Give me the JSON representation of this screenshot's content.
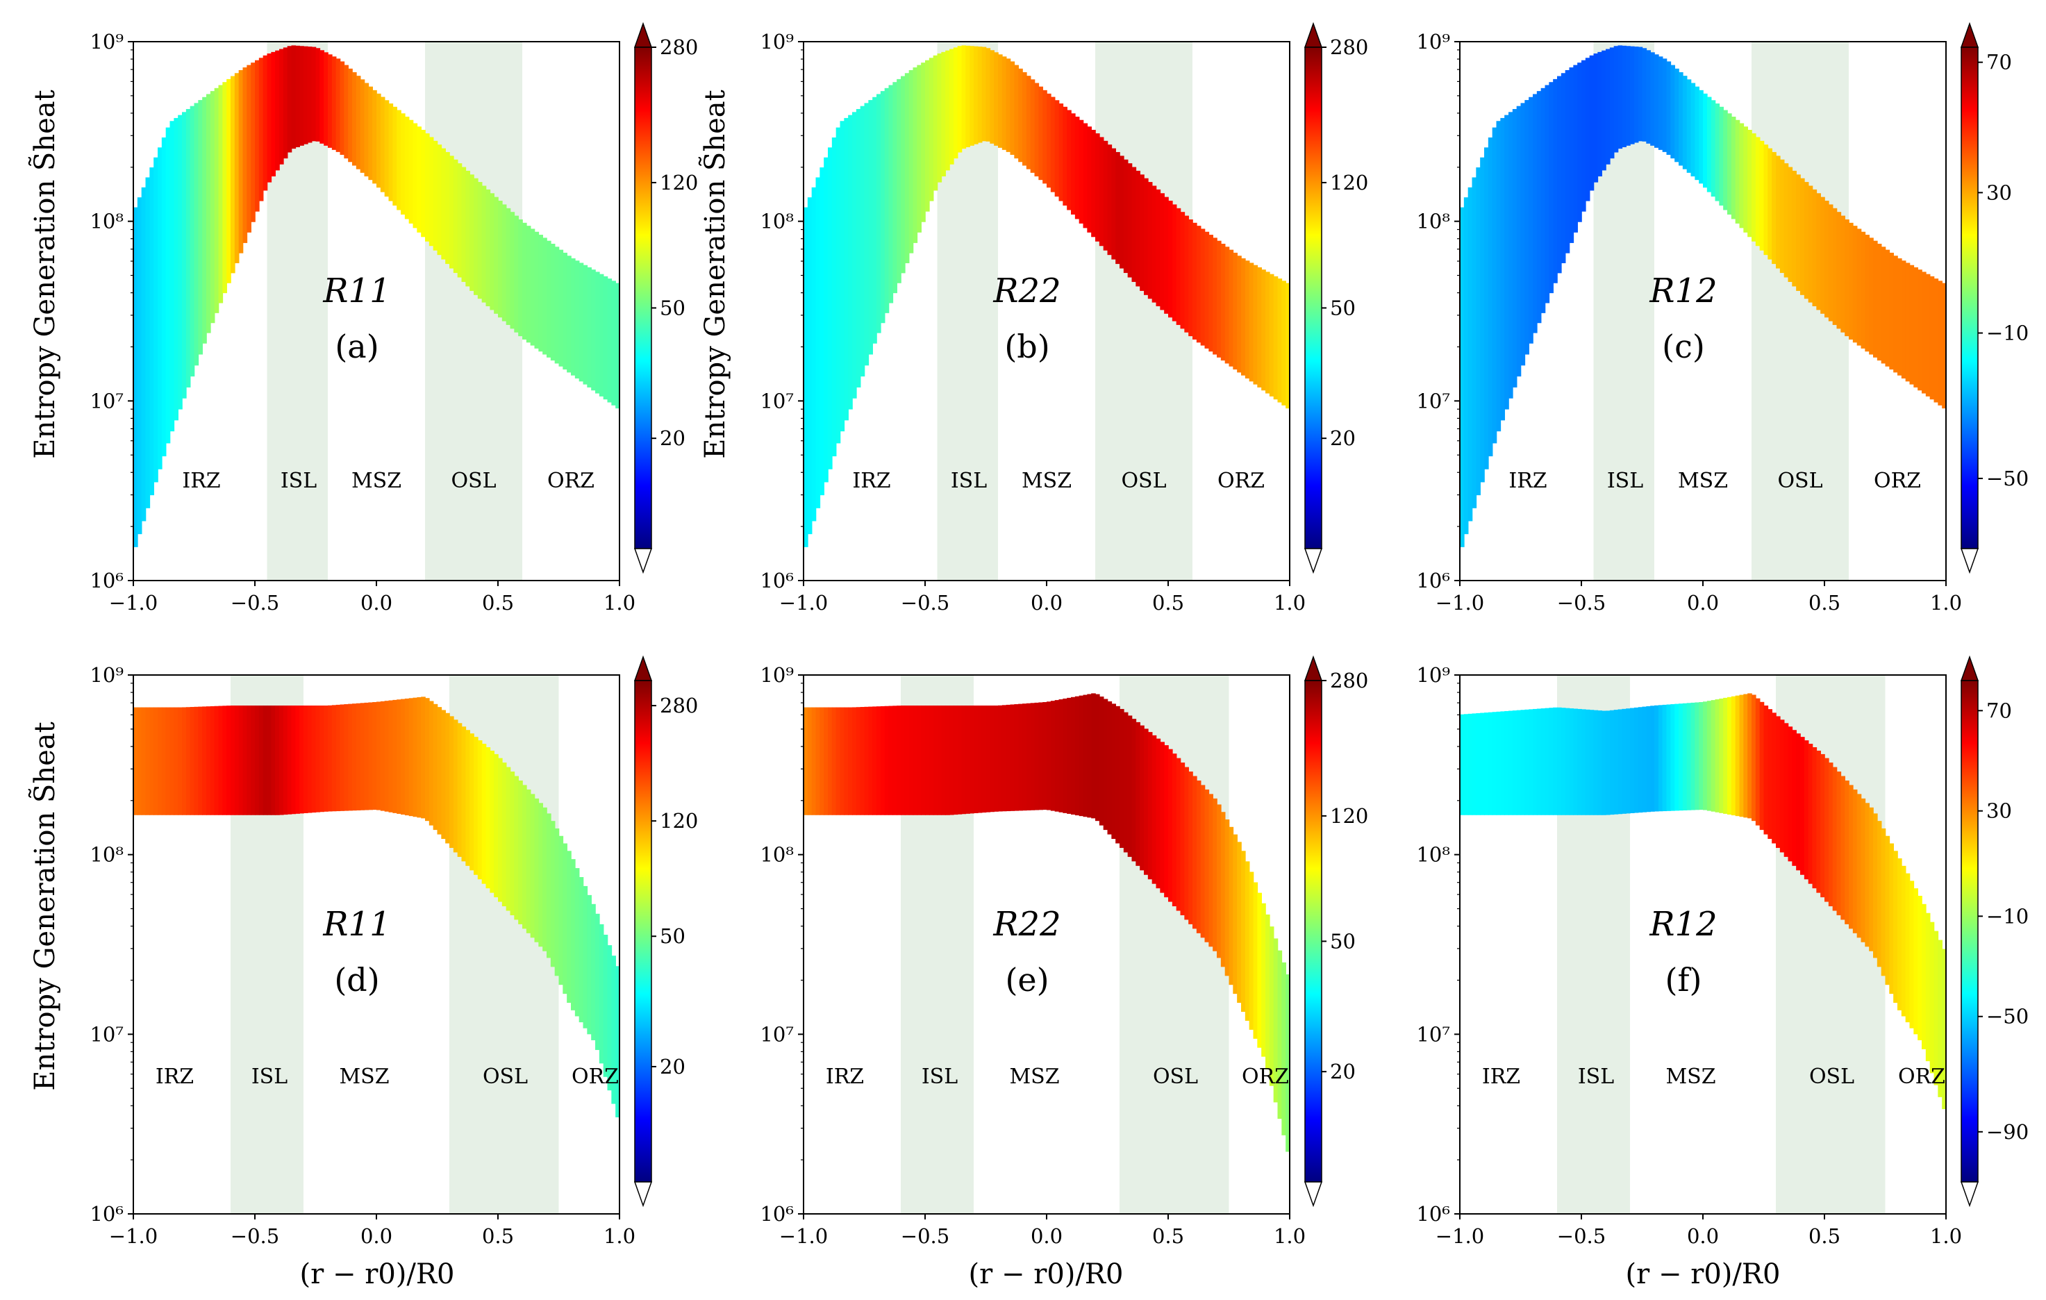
{
  "figure": {
    "ylabel": "Entropy Generation S̃heat",
    "xlabel": "(r − r0)/R0"
  },
  "region_labels_top": [
    "IRZ",
    "ISL",
    "MSZ",
    "OSL",
    "ORZ"
  ],
  "region_labels_bottom": [
    "IRZ",
    "ISL",
    "MSZ",
    "OSL",
    "ORZ"
  ],
  "band_color": "#e6f0e6",
  "chart_data": [
    {
      "id": "a",
      "type": "heatmap",
      "panel_label": "(a)",
      "component": "R11",
      "xlim": [
        -1.0,
        1.0
      ],
      "ylim_log10": [
        6,
        9
      ],
      "yscale": "log",
      "xticks": [
        "−1.0",
        "−0.5",
        "0.0",
        "0.5",
        "1.0"
      ],
      "yticks": [
        "10⁶",
        "10⁷",
        "10⁸",
        "10⁹"
      ],
      "bands": [
        [
          -0.45,
          -0.2
        ],
        [
          0.2,
          0.6
        ]
      ],
      "regions": [
        [
          "IRZ",
          -0.72
        ],
        [
          "ISL",
          -0.32
        ],
        [
          "MSZ",
          0.0
        ],
        [
          "OSL",
          0.4
        ],
        [
          "ORZ",
          0.8
        ]
      ],
      "colorbar_ticks": [
        "20",
        "50",
        "120",
        "280"
      ],
      "colorbar_tick_pos": [
        0.22,
        0.48,
        0.73,
        1.0
      ],
      "envelope": {
        "x": [
          -1.0,
          -0.85,
          -0.7,
          -0.55,
          -0.45,
          -0.35,
          -0.25,
          -0.15,
          0.0,
          0.2,
          0.4,
          0.6,
          0.8,
          1.0
        ],
        "upper": [
          8.05,
          8.55,
          8.7,
          8.85,
          8.93,
          8.98,
          8.97,
          8.9,
          8.72,
          8.5,
          8.25,
          8.0,
          7.8,
          7.65
        ],
        "lower": [
          6.15,
          6.8,
          7.35,
          7.85,
          8.2,
          8.4,
          8.45,
          8.38,
          8.2,
          7.9,
          7.6,
          7.35,
          7.15,
          6.95
        ]
      },
      "color_profile": {
        "x": [
          -1.0,
          -0.8,
          -0.65,
          -0.55,
          -0.45,
          -0.35,
          -0.25,
          -0.1,
          0.1,
          0.3,
          0.6,
          1.0
        ],
        "c": [
          0.32,
          0.4,
          0.55,
          0.75,
          0.86,
          0.92,
          0.9,
          0.76,
          0.64,
          0.6,
          0.5,
          0.45
        ]
      }
    },
    {
      "id": "b",
      "type": "heatmap",
      "panel_label": "(b)",
      "component": "R22",
      "xlim": [
        -1.0,
        1.0
      ],
      "ylim_log10": [
        6,
        9
      ],
      "yscale": "log",
      "xticks": [
        "−1.0",
        "−0.5",
        "0.0",
        "0.5",
        "1.0"
      ],
      "yticks": [
        "10⁶",
        "10⁷",
        "10⁸",
        "10⁹"
      ],
      "bands": [
        [
          -0.45,
          -0.2
        ],
        [
          0.2,
          0.6
        ]
      ],
      "regions": [
        [
          "IRZ",
          -0.72
        ],
        [
          "ISL",
          -0.32
        ],
        [
          "MSZ",
          0.0
        ],
        [
          "OSL",
          0.4
        ],
        [
          "ORZ",
          0.8
        ]
      ],
      "colorbar_ticks": [
        "20",
        "50",
        "120",
        "280"
      ],
      "colorbar_tick_pos": [
        0.22,
        0.48,
        0.73,
        1.0
      ],
      "envelope": {
        "x": [
          -1.0,
          -0.85,
          -0.7,
          -0.55,
          -0.45,
          -0.35,
          -0.25,
          -0.15,
          0.0,
          0.2,
          0.4,
          0.6,
          0.8,
          1.0
        ],
        "upper": [
          8.05,
          8.55,
          8.7,
          8.85,
          8.93,
          8.98,
          8.97,
          8.9,
          8.72,
          8.5,
          8.25,
          8.0,
          7.8,
          7.65
        ],
        "lower": [
          6.15,
          6.8,
          7.35,
          7.85,
          8.2,
          8.4,
          8.45,
          8.38,
          8.2,
          7.9,
          7.6,
          7.35,
          7.15,
          6.95
        ]
      },
      "color_profile": {
        "x": [
          -1.0,
          -0.7,
          -0.5,
          -0.3,
          -0.1,
          0.1,
          0.3,
          0.5,
          0.7,
          0.85,
          1.0
        ],
        "c": [
          0.36,
          0.42,
          0.55,
          0.66,
          0.75,
          0.86,
          0.92,
          0.88,
          0.8,
          0.72,
          0.65
        ]
      }
    },
    {
      "id": "c",
      "type": "heatmap",
      "panel_label": "(c)",
      "component": "R12",
      "xlim": [
        -1.0,
        1.0
      ],
      "ylim_log10": [
        6,
        9
      ],
      "yscale": "log",
      "xticks": [
        "−1.0",
        "−0.5",
        "0.0",
        "0.5",
        "1.0"
      ],
      "yticks": [
        "10⁶",
        "10⁷",
        "10⁸",
        "10⁹"
      ],
      "bands": [
        [
          -0.45,
          -0.2
        ],
        [
          0.2,
          0.6
        ]
      ],
      "regions": [
        [
          "IRZ",
          -0.72
        ],
        [
          "ISL",
          -0.32
        ],
        [
          "MSZ",
          0.0
        ],
        [
          "OSL",
          0.4
        ],
        [
          "ORZ",
          0.8
        ]
      ],
      "colorbar_ticks": [
        "−50",
        "−10",
        "30",
        "70"
      ],
      "colorbar_tick_pos": [
        0.14,
        0.43,
        0.71,
        0.97
      ],
      "envelope": {
        "x": [
          -1.0,
          -0.85,
          -0.7,
          -0.55,
          -0.45,
          -0.35,
          -0.25,
          -0.15,
          0.0,
          0.2,
          0.4,
          0.6,
          0.8,
          1.0
        ],
        "upper": [
          8.05,
          8.55,
          8.7,
          8.85,
          8.93,
          8.98,
          8.97,
          8.9,
          8.72,
          8.5,
          8.25,
          8.0,
          7.8,
          7.65
        ],
        "lower": [
          6.15,
          6.8,
          7.35,
          7.85,
          8.2,
          8.4,
          8.45,
          8.38,
          8.2,
          7.9,
          7.6,
          7.35,
          7.15,
          6.95
        ]
      },
      "color_profile": {
        "x": [
          -1.0,
          -0.8,
          -0.6,
          -0.45,
          -0.3,
          -0.15,
          0.0,
          0.15,
          0.3,
          0.5,
          0.7,
          1.0
        ],
        "c": [
          0.33,
          0.27,
          0.22,
          0.2,
          0.22,
          0.26,
          0.36,
          0.55,
          0.68,
          0.72,
          0.75,
          0.76
        ]
      }
    },
    {
      "id": "d",
      "type": "heatmap",
      "panel_label": "(d)",
      "component": "R11",
      "xlim": [
        -1.0,
        1.0
      ],
      "ylim_log10": [
        6,
        9
      ],
      "yscale": "log",
      "xticks": [
        "−1.0",
        "−0.5",
        "0.0",
        "0.5",
        "1.0"
      ],
      "yticks": [
        "10⁶",
        "10⁷",
        "10⁸",
        "10⁹"
      ],
      "bands": [
        [
          -0.6,
          -0.3
        ],
        [
          0.3,
          0.75
        ]
      ],
      "regions": [
        [
          "IRZ",
          -0.83
        ],
        [
          "ISL",
          -0.44
        ],
        [
          "MSZ",
          -0.05
        ],
        [
          "OSL",
          0.53
        ],
        [
          "ORZ",
          0.9
        ]
      ],
      "colorbar_ticks": [
        "20",
        "50",
        "120",
        "280"
      ],
      "colorbar_tick_pos": [
        0.23,
        0.49,
        0.72,
        0.95
      ],
      "envelope": {
        "x": [
          -1.0,
          -0.8,
          -0.6,
          -0.4,
          -0.2,
          0.0,
          0.2,
          0.3,
          0.5,
          0.7,
          0.8,
          0.9,
          1.0
        ],
        "upper": [
          8.82,
          8.82,
          8.83,
          8.83,
          8.83,
          8.85,
          8.88,
          8.78,
          8.55,
          8.25,
          8.0,
          7.7,
          7.35
        ],
        "lower": [
          8.22,
          8.22,
          8.22,
          8.22,
          8.24,
          8.25,
          8.2,
          8.05,
          7.75,
          7.45,
          7.15,
          6.95,
          6.5
        ]
      },
      "color_profile": {
        "x": [
          -1.0,
          -0.8,
          -0.6,
          -0.45,
          -0.3,
          -0.1,
          0.1,
          0.3,
          0.5,
          0.7,
          0.9,
          1.0
        ],
        "c": [
          0.76,
          0.8,
          0.88,
          0.94,
          0.86,
          0.8,
          0.76,
          0.7,
          0.6,
          0.52,
          0.46,
          0.42
        ]
      }
    },
    {
      "id": "e",
      "type": "heatmap",
      "panel_label": "(e)",
      "component": "R22",
      "xlim": [
        -1.0,
        1.0
      ],
      "ylim_log10": [
        6,
        9
      ],
      "yscale": "log",
      "xticks": [
        "−1.0",
        "−0.5",
        "0.0",
        "0.5",
        "1.0"
      ],
      "yticks": [
        "10⁶",
        "10⁷",
        "10⁸",
        "10⁹"
      ],
      "bands": [
        [
          -0.6,
          -0.3
        ],
        [
          0.3,
          0.75
        ]
      ],
      "regions": [
        [
          "IRZ",
          -0.83
        ],
        [
          "ISL",
          -0.44
        ],
        [
          "MSZ",
          -0.05
        ],
        [
          "OSL",
          0.53
        ],
        [
          "ORZ",
          0.9
        ]
      ],
      "colorbar_ticks": [
        "20",
        "50",
        "120",
        "280"
      ],
      "colorbar_tick_pos": [
        0.22,
        0.48,
        0.73,
        1.0
      ],
      "envelope": {
        "x": [
          -1.0,
          -0.8,
          -0.6,
          -0.4,
          -0.2,
          0.0,
          0.2,
          0.3,
          0.5,
          0.7,
          0.8,
          0.9,
          1.0
        ],
        "upper": [
          8.82,
          8.82,
          8.83,
          8.83,
          8.83,
          8.85,
          8.9,
          8.82,
          8.6,
          8.3,
          8.05,
          7.7,
          7.3
        ],
        "lower": [
          8.22,
          8.22,
          8.22,
          8.22,
          8.24,
          8.25,
          8.2,
          8.05,
          7.75,
          7.45,
          7.15,
          6.85,
          6.3
        ]
      },
      "color_profile": {
        "x": [
          -1.0,
          -0.85,
          -0.65,
          -0.4,
          -0.1,
          0.2,
          0.35,
          0.55,
          0.7,
          0.85,
          1.0
        ],
        "c": [
          0.74,
          0.82,
          0.88,
          0.9,
          0.92,
          0.95,
          0.94,
          0.85,
          0.76,
          0.65,
          0.5
        ]
      }
    },
    {
      "id": "f",
      "type": "heatmap",
      "panel_label": "(f)",
      "component": "R12",
      "xlim": [
        -1.0,
        1.0
      ],
      "ylim_log10": [
        6,
        9
      ],
      "yscale": "log",
      "xticks": [
        "−1.0",
        "−0.5",
        "0.0",
        "0.5",
        "1.0"
      ],
      "yticks": [
        "10⁶",
        "10⁷",
        "10⁸",
        "10⁹"
      ],
      "bands": [
        [
          -0.6,
          -0.3
        ],
        [
          0.3,
          0.75
        ]
      ],
      "regions": [
        [
          "IRZ",
          -0.83
        ],
        [
          "ISL",
          -0.44
        ],
        [
          "MSZ",
          -0.05
        ],
        [
          "OSL",
          0.53
        ],
        [
          "ORZ",
          0.9
        ]
      ],
      "colorbar_ticks": [
        "−90",
        "−50",
        "−10",
        "30",
        "70"
      ],
      "colorbar_tick_pos": [
        0.1,
        0.33,
        0.53,
        0.74,
        0.94
      ],
      "envelope": {
        "x": [
          -1.0,
          -0.8,
          -0.6,
          -0.4,
          -0.2,
          0.0,
          0.2,
          0.3,
          0.5,
          0.7,
          0.8,
          0.9,
          1.0
        ],
        "upper": [
          8.78,
          8.8,
          8.82,
          8.8,
          8.83,
          8.85,
          8.9,
          8.78,
          8.55,
          8.25,
          8.0,
          7.75,
          7.45
        ],
        "lower": [
          8.22,
          8.22,
          8.22,
          8.22,
          8.24,
          8.25,
          8.2,
          8.05,
          7.75,
          7.45,
          7.15,
          6.95,
          6.55
        ]
      },
      "color_profile": {
        "x": [
          -1.0,
          -0.8,
          -0.6,
          -0.4,
          -0.2,
          -0.05,
          0.1,
          0.25,
          0.4,
          0.6,
          0.8,
          1.0
        ],
        "c": [
          0.38,
          0.37,
          0.35,
          0.32,
          0.3,
          0.42,
          0.6,
          0.85,
          0.88,
          0.76,
          0.66,
          0.58
        ]
      }
    }
  ]
}
